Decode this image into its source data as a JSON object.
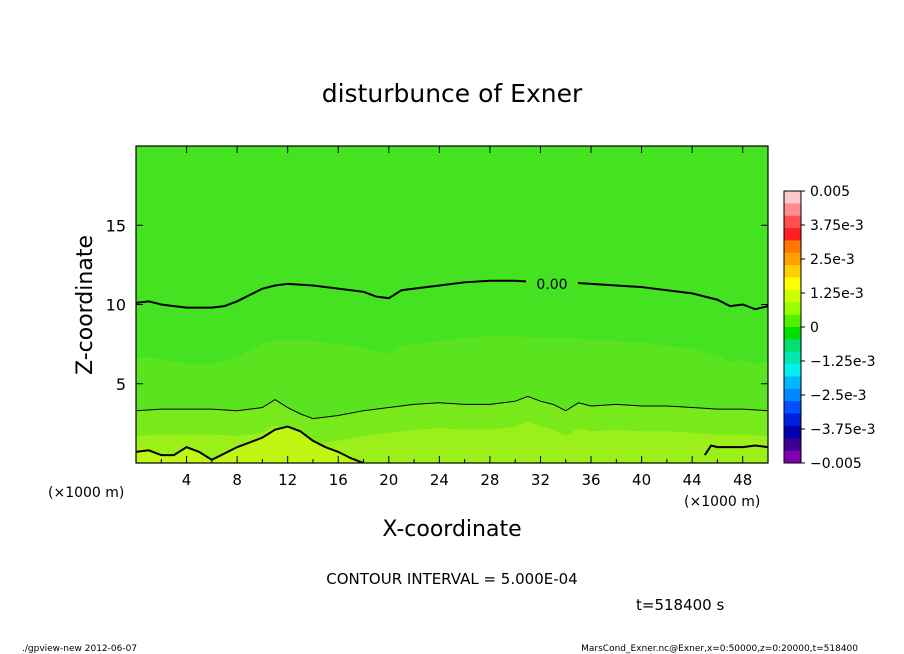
{
  "chart_data": {
    "type": "heatmap",
    "title": "disturbunce of Exner",
    "xlabel": "X-coordinate",
    "ylabel": "Z-coordinate",
    "x_unit_left": "(×1000 m)",
    "x_unit_right": "(×1000 m)",
    "xlim": [
      0,
      50
    ],
    "ylim": [
      0,
      20
    ],
    "x_ticks": [
      "4",
      "8",
      "12",
      "16",
      "20",
      "24",
      "28",
      "32",
      "36",
      "40",
      "44",
      "48"
    ],
    "x_tick_values": [
      4,
      8,
      12,
      16,
      20,
      24,
      28,
      32,
      36,
      40,
      44,
      48
    ],
    "y_ticks": [
      "5",
      "10",
      "15"
    ],
    "y_tick_values": [
      5,
      10,
      15
    ],
    "contour_interval_text": "CONTOUR INTERVAL = 5.000E-04",
    "time_text": "t=518400 s",
    "contour_label": "0.00",
    "contours": [
      {
        "level": 0.0,
        "labeled": true,
        "x": [
          0,
          1,
          2,
          3,
          4,
          5,
          6,
          7,
          8,
          9,
          10,
          11,
          12,
          14,
          16,
          18,
          19,
          20,
          21,
          22,
          24,
          26,
          28,
          30,
          32,
          34,
          36,
          38,
          40,
          42,
          44,
          46,
          47,
          48,
          49,
          50
        ],
        "y": [
          10.1,
          10.2,
          10.0,
          9.9,
          9.8,
          9.8,
          9.8,
          9.9,
          10.2,
          10.6,
          11.0,
          11.2,
          11.3,
          11.2,
          11.0,
          10.8,
          10.5,
          10.4,
          10.9,
          11.0,
          11.2,
          11.4,
          11.5,
          11.5,
          11.4,
          11.4,
          11.3,
          11.2,
          11.1,
          10.9,
          10.7,
          10.3,
          9.9,
          10.0,
          9.7,
          9.9
        ]
      },
      {
        "level": 0.0005,
        "labeled": false,
        "x": [
          0,
          2,
          4,
          6,
          8,
          10,
          11,
          12,
          13,
          14,
          16,
          18,
          20,
          22,
          24,
          26,
          28,
          30,
          31,
          32,
          33,
          34,
          35,
          36,
          38,
          40,
          42,
          44,
          46,
          48,
          50
        ],
        "y": [
          3.3,
          3.4,
          3.4,
          3.4,
          3.3,
          3.5,
          4.0,
          3.5,
          3.1,
          2.8,
          3.0,
          3.3,
          3.5,
          3.7,
          3.8,
          3.7,
          3.7,
          3.9,
          4.2,
          3.9,
          3.7,
          3.3,
          3.8,
          3.6,
          3.7,
          3.6,
          3.6,
          3.5,
          3.4,
          3.4,
          3.3
        ]
      },
      {
        "level": 0.001,
        "labeled": false,
        "x": [
          0,
          1,
          2,
          3,
          4,
          5,
          6,
          7,
          8,
          9,
          10,
          11,
          12,
          13,
          14,
          15,
          16,
          17,
          18
        ],
        "y": [
          0.7,
          0.8,
          0.5,
          0.5,
          1.0,
          0.7,
          0.2,
          0.6,
          1.0,
          1.3,
          1.6,
          2.1,
          2.3,
          2.0,
          1.4,
          1.0,
          0.7,
          0.3,
          0.0
        ]
      },
      {
        "level": 0.001,
        "labeled": false,
        "x": [
          45,
          45.5,
          46,
          47,
          48,
          49,
          50
        ],
        "y": [
          0.5,
          1.1,
          1.0,
          1.0,
          1.0,
          1.1,
          1.0
        ]
      }
    ],
    "colorbar": {
      "labels": [
        "0.005",
        "3.75e-3",
        "2.5e-3",
        "1.25e-3",
        "0",
        "−1.25e-3",
        "−2.5e-3",
        "−3.75e-3",
        "−0.005"
      ],
      "colors_top_to_bottom": [
        "#ffc8c8",
        "#ff8c8c",
        "#ff5050",
        "#ff2020",
        "#ff7800",
        "#ffa000",
        "#ffd000",
        "#ffff00",
        "#ccff00",
        "#99ff00",
        "#55f000",
        "#00e000",
        "#00e070",
        "#00e8b0",
        "#00f0f0",
        "#00b8ff",
        "#0088ff",
        "#0050ff",
        "#0020e0",
        "#0000b0",
        "#3c0090",
        "#8000b0"
      ]
    },
    "fill_colors": {
      "background": "#44e220",
      "band_1": "#5ae420",
      "band_2": "#78ea1c",
      "band_3": "#9af018",
      "band_4": "#c0f614"
    }
  },
  "footer": {
    "left": "./gpview-new  2012-06-07",
    "right": "MarsCond_Exner.nc@Exner,x=0:50000,z=0:20000,t=518400"
  }
}
